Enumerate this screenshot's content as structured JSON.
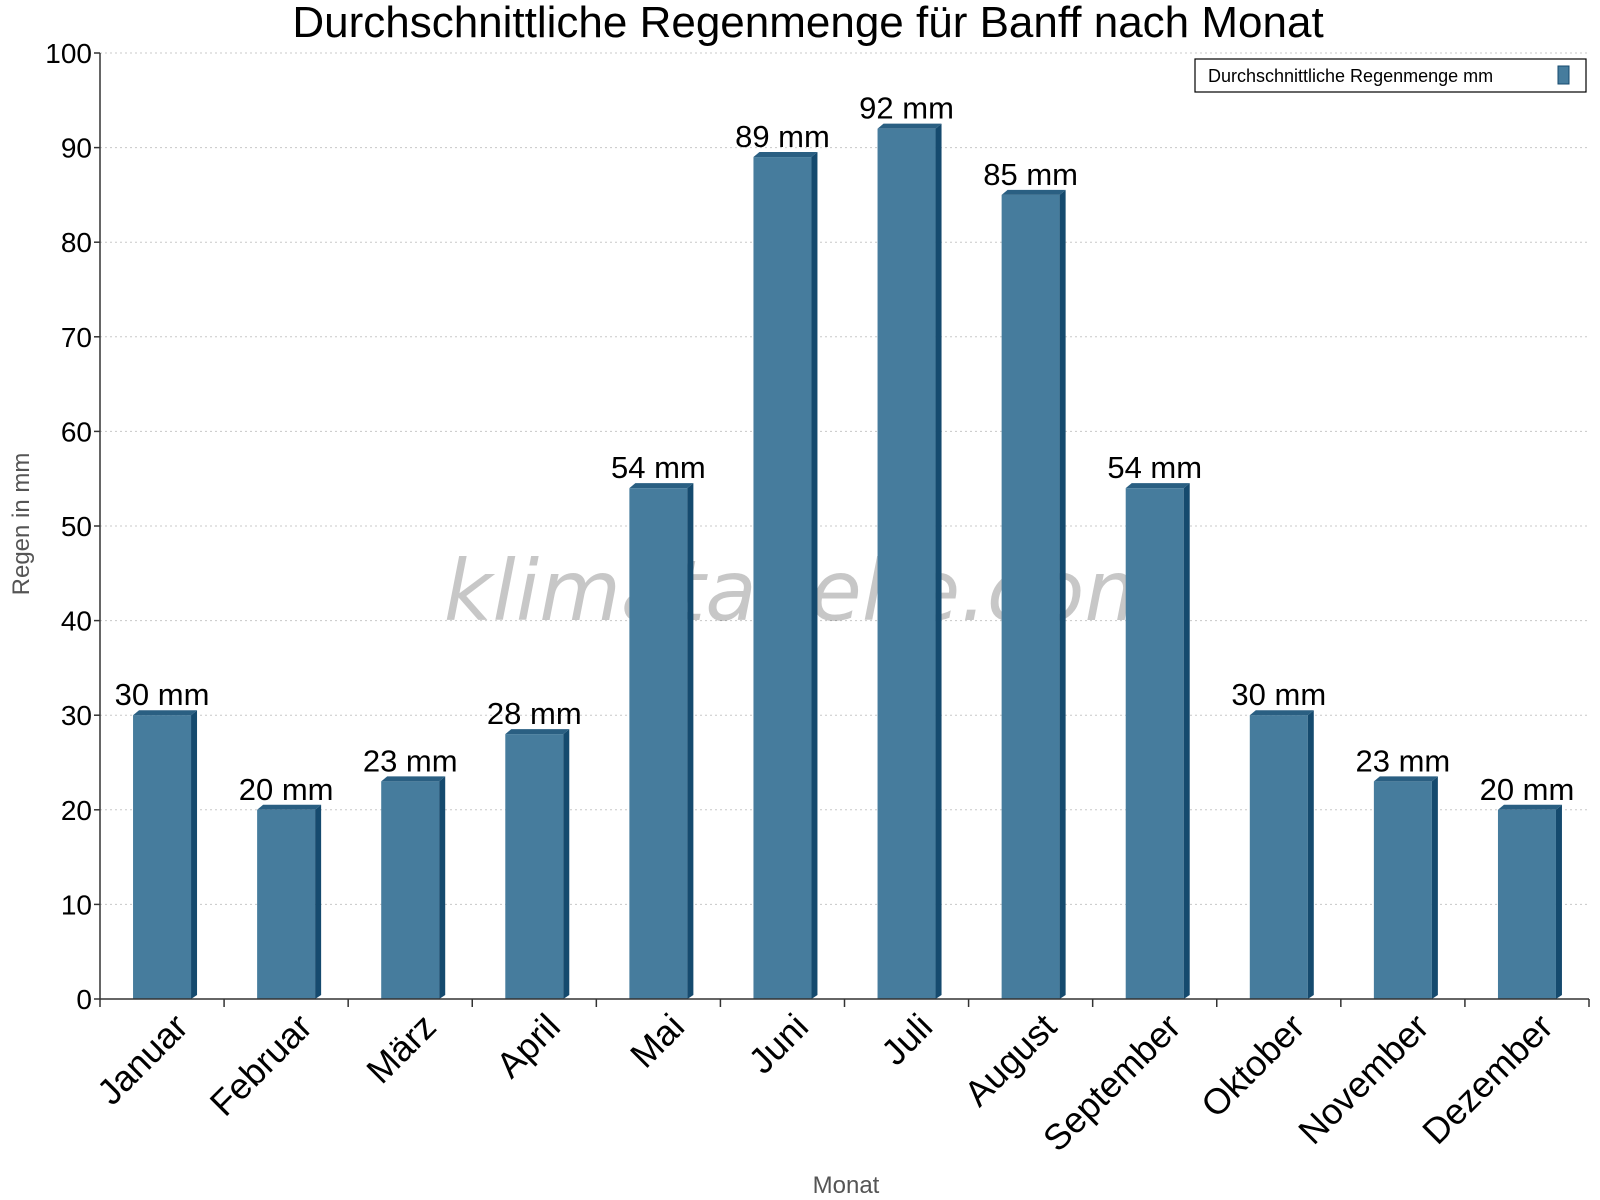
{
  "colors": {
    "bar_front": "#467c9d",
    "bar_side": "#154a6e",
    "bar_top": "#2a5f82",
    "grid": "#c8c8c8",
    "axis": "#333333"
  },
  "watermark": "klimatabelle.com",
  "chart_data": {
    "type": "bar",
    "title": "Durchschnittliche Regenmenge für Banff nach Monat",
    "xlabel": "Monat",
    "ylabel": "Regen in mm",
    "ylim": [
      0,
      100
    ],
    "yticks": [
      0,
      10,
      20,
      30,
      40,
      50,
      60,
      70,
      80,
      90,
      100
    ],
    "grid": true,
    "legend": {
      "placement": "top-right",
      "entries": [
        "Durchschnittliche Regenmenge mm"
      ]
    },
    "categories": [
      "Januar",
      "Februar",
      "März",
      "April",
      "Mai",
      "Juni",
      "Juli",
      "August",
      "September",
      "Oktober",
      "November",
      "Dezember"
    ],
    "series": [
      {
        "name": "Durchschnittliche Regenmenge mm",
        "values": [
          30,
          20,
          23,
          28,
          54,
          89,
          92,
          85,
          54,
          30,
          23,
          20
        ],
        "labels": [
          "30 mm",
          "20 mm",
          "23 mm",
          "28 mm",
          "54 mm",
          "89 mm",
          "92 mm",
          "85 mm",
          "54 mm",
          "30 mm",
          "23 mm",
          "20 mm"
        ]
      }
    ]
  }
}
